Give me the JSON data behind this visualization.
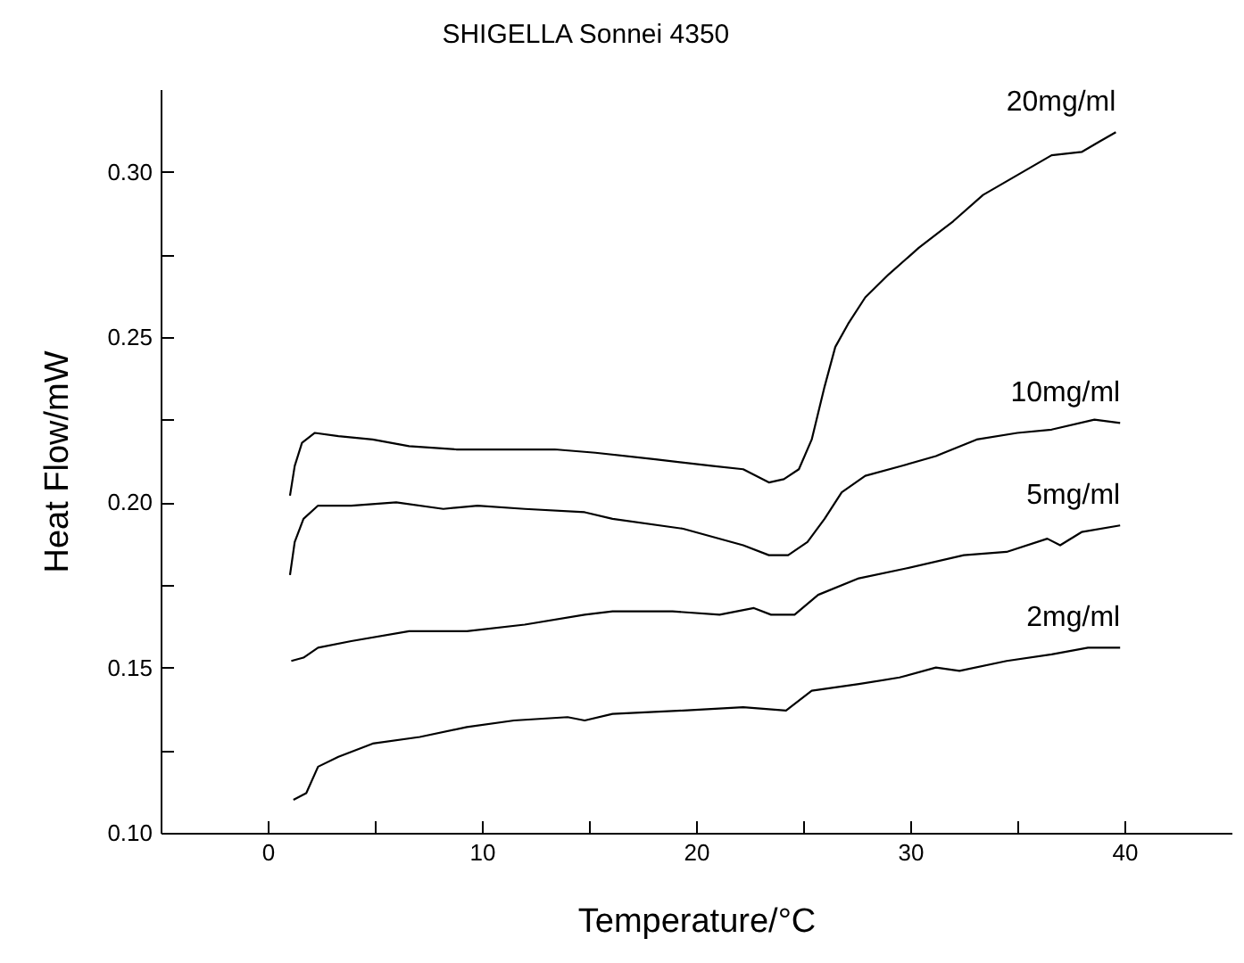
{
  "chart_data": {
    "type": "line",
    "title": "SHIGELLA Sonnei 4350",
    "xlabel": "Temperature/°C",
    "ylabel": "Heat Flow/mW",
    "xlim": [
      -5,
      45
    ],
    "xticks": [
      0,
      {
        "value": 5,
        "label": null
      },
      10,
      {
        "value": 15,
        "label": null
      },
      20,
      {
        "value": 25,
        "label": null
      },
      30,
      {
        "value": 35,
        "label": null
      },
      40
    ],
    "ylim": [
      0.1,
      0.325
    ],
    "yticks": [
      {
        "value": 0.1,
        "label": "0.10"
      },
      {
        "value": 0.125,
        "label": null
      },
      {
        "value": 0.15,
        "label": "0.15"
      },
      {
        "value": 0.175,
        "label": null
      },
      {
        "value": 0.2,
        "label": "0.20"
      },
      {
        "value": 0.225,
        "label": null
      },
      {
        "value": 0.25,
        "label": "0.25"
      },
      {
        "value": 0.275,
        "label": null
      },
      {
        "value": 0.3,
        "label": "0.30"
      }
    ],
    "grid": false,
    "series": [
      {
        "name": "20mg/ml",
        "color": "#000000",
        "x": [
          1.04,
          1.26,
          1.6,
          2.2,
          3.3,
          4.9,
          6.6,
          8.8,
          11.0,
          13.4,
          15.3,
          18.1,
          20.8,
          22.2,
          23.4,
          24.1,
          24.8,
          25.4,
          26.0,
          26.5,
          27.1,
          27.9,
          29.0,
          30.4,
          32.0,
          33.4,
          35.0,
          36.6,
          38.0,
          38.8,
          39.6
        ],
        "values": [
          0.202,
          0.211,
          0.218,
          0.221,
          0.22,
          0.219,
          0.217,
          0.216,
          0.216,
          0.216,
          0.215,
          0.213,
          0.211,
          0.21,
          0.206,
          0.207,
          0.21,
          0.219,
          0.235,
          0.247,
          0.254,
          0.262,
          0.269,
          0.277,
          0.285,
          0.293,
          0.299,
          0.305,
          0.306,
          0.309,
          0.312
        ]
      },
      {
        "name": "10mg/ml",
        "color": "#000000",
        "x": [
          1.04,
          1.26,
          1.67,
          2.35,
          3.9,
          6.0,
          8.2,
          9.8,
          12.0,
          14.8,
          16.1,
          19.4,
          22.2,
          23.4,
          24.3,
          25.2,
          26.0,
          26.8,
          27.9,
          29.6,
          31.2,
          33.1,
          35.0,
          36.6,
          38.6,
          39.8
        ],
        "values": [
          0.178,
          0.188,
          0.195,
          0.199,
          0.199,
          0.2,
          0.198,
          0.199,
          0.198,
          0.197,
          0.195,
          0.192,
          0.187,
          0.184,
          0.184,
          0.188,
          0.195,
          0.203,
          0.208,
          0.211,
          0.214,
          0.219,
          0.221,
          0.222,
          0.225,
          0.224
        ]
      },
      {
        "name": "5mg/ml",
        "color": "#000000",
        "x": [
          1.1,
          1.67,
          2.35,
          3.9,
          6.6,
          9.3,
          12.0,
          14.8,
          16.1,
          18.9,
          21.1,
          22.7,
          23.5,
          24.6,
          25.7,
          27.6,
          29.8,
          32.5,
          34.5,
          36.4,
          37.0,
          38.0,
          39.8
        ],
        "values": [
          0.152,
          0.153,
          0.156,
          0.158,
          0.161,
          0.161,
          0.163,
          0.166,
          0.167,
          0.167,
          0.166,
          0.168,
          0.166,
          0.166,
          0.172,
          0.177,
          0.18,
          0.184,
          0.185,
          0.189,
          0.187,
          0.191,
          0.193
        ]
      },
      {
        "name": "2mg/ml",
        "color": "#000000",
        "x": [
          1.2,
          1.8,
          2.35,
          3.3,
          4.9,
          7.1,
          9.3,
          11.5,
          14.0,
          14.8,
          16.1,
          19.4,
          22.2,
          24.2,
          25.4,
          27.6,
          29.5,
          31.2,
          32.3,
          34.5,
          36.6,
          38.3,
          39.8
        ],
        "values": [
          0.11,
          0.112,
          0.12,
          0.123,
          0.127,
          0.129,
          0.132,
          0.134,
          0.135,
          0.134,
          0.136,
          0.137,
          0.138,
          0.137,
          0.143,
          0.145,
          0.147,
          0.15,
          0.149,
          0.152,
          0.154,
          0.156,
          0.156
        ]
      }
    ]
  }
}
